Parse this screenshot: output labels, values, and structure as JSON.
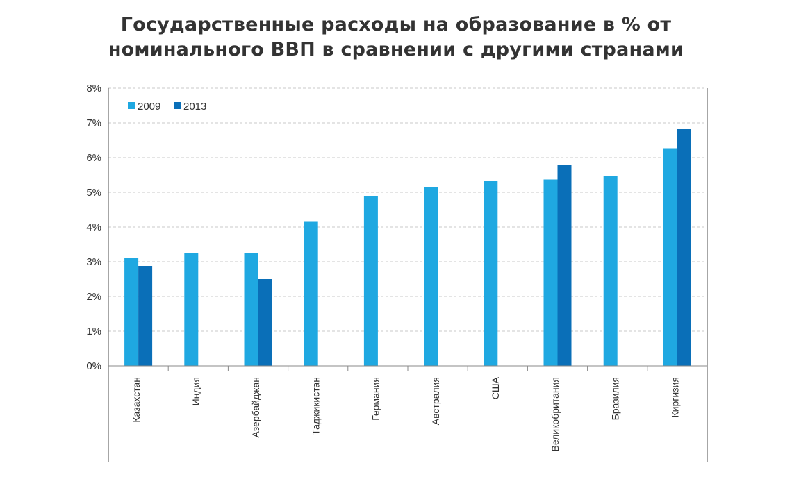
{
  "chart_data": {
    "type": "bar",
    "title_lines": [
      "Государственные расходы на образование в % от",
      "номинального ВВП в сравнении с другими странами"
    ],
    "categories": [
      "Казахстан",
      "Индия",
      "Азербайджан",
      "Таджикистан",
      "Германия",
      "Австралия",
      "США",
      "Великобритания",
      "Бразилия",
      "Киргизия"
    ],
    "series": [
      {
        "name": "2009",
        "color": "#1fa8e1",
        "values": [
          3.1,
          3.25,
          3.25,
          4.15,
          4.9,
          5.15,
          5.32,
          5.37,
          5.48,
          6.27
        ]
      },
      {
        "name": "2013",
        "color": "#0a6fb8",
        "values": [
          2.88,
          null,
          2.5,
          null,
          null,
          null,
          null,
          5.8,
          null,
          6.82
        ]
      }
    ],
    "y_ticks": [
      "0%",
      "1%",
      "2%",
      "3%",
      "4%",
      "5%",
      "6%",
      "7%",
      "8%"
    ],
    "ylim": [
      0,
      8
    ],
    "grid": true,
    "legend_position": "top-left"
  }
}
